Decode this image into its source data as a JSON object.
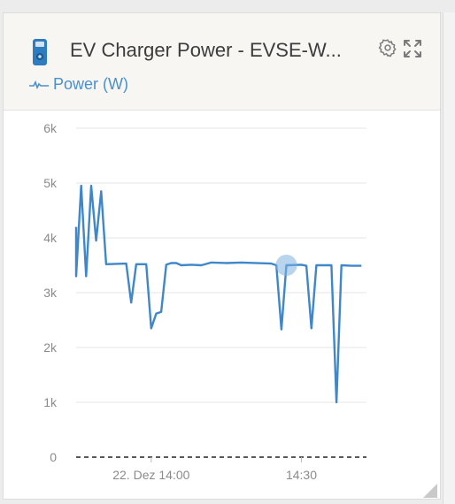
{
  "widget": {
    "title": "EV Charger Power - EVSE-W...",
    "legend_label": "Power (W)",
    "device_icon": "ev-charger-icon",
    "settings_icon": "gear-icon",
    "expand_icon": "expand-icon"
  },
  "colors": {
    "accent": "#4a90cd",
    "series": "#3f87c9",
    "header_bg": "#f7f6f3",
    "text": "#3c3c3c",
    "axis_text": "#8a8a8a"
  },
  "chart_data": {
    "type": "line",
    "title": "",
    "xlabel": "",
    "ylabel": "",
    "ylim": [
      0,
      6000
    ],
    "ytick_labels": [
      "0",
      "1k",
      "2k",
      "3k",
      "4k",
      "5k",
      "6k"
    ],
    "yticks": [
      0,
      1000,
      2000,
      3000,
      4000,
      5000,
      6000
    ],
    "xlim": [
      "13:45",
      "14:43"
    ],
    "xticks": [
      "14:00",
      "14:30"
    ],
    "xtick_labels": [
      "22. Dez 14:00",
      "14:30"
    ],
    "grid": true,
    "legend_position": "top-left",
    "hover_point": {
      "x": "14:27",
      "y": 3500
    },
    "series": [
      {
        "name": "Power (W)",
        "points": [
          [
            "13:45",
            4200
          ],
          [
            "13:45",
            3300
          ],
          [
            "13:46",
            4950
          ],
          [
            "13:47",
            3300
          ],
          [
            "13:48",
            4950
          ],
          [
            "13:49",
            3950
          ],
          [
            "13:50",
            4850
          ],
          [
            "13:51",
            3520
          ],
          [
            "13:55",
            3530
          ],
          [
            "13:56",
            2820
          ],
          [
            "13:57",
            3520
          ],
          [
            "13:59",
            3520
          ],
          [
            "14:00",
            2350
          ],
          [
            "14:01",
            2620
          ],
          [
            "14:02",
            2650
          ],
          [
            "14:03",
            3510
          ],
          [
            "14:04",
            3540
          ],
          [
            "14:05",
            3540
          ],
          [
            "14:06",
            3500
          ],
          [
            "14:08",
            3510
          ],
          [
            "14:10",
            3500
          ],
          [
            "14:12",
            3550
          ],
          [
            "14:15",
            3540
          ],
          [
            "14:18",
            3550
          ],
          [
            "14:24",
            3530
          ],
          [
            "14:25",
            3500
          ],
          [
            "14:26",
            2330
          ],
          [
            "14:27",
            3500
          ],
          [
            "14:30",
            3510
          ],
          [
            "14:31",
            3490
          ],
          [
            "14:32",
            2350
          ],
          [
            "14:33",
            3500
          ],
          [
            "14:36",
            3500
          ],
          [
            "14:37",
            1000
          ],
          [
            "14:38",
            3500
          ],
          [
            "14:40",
            3490
          ],
          [
            "14:42",
            3490
          ]
        ]
      }
    ]
  }
}
